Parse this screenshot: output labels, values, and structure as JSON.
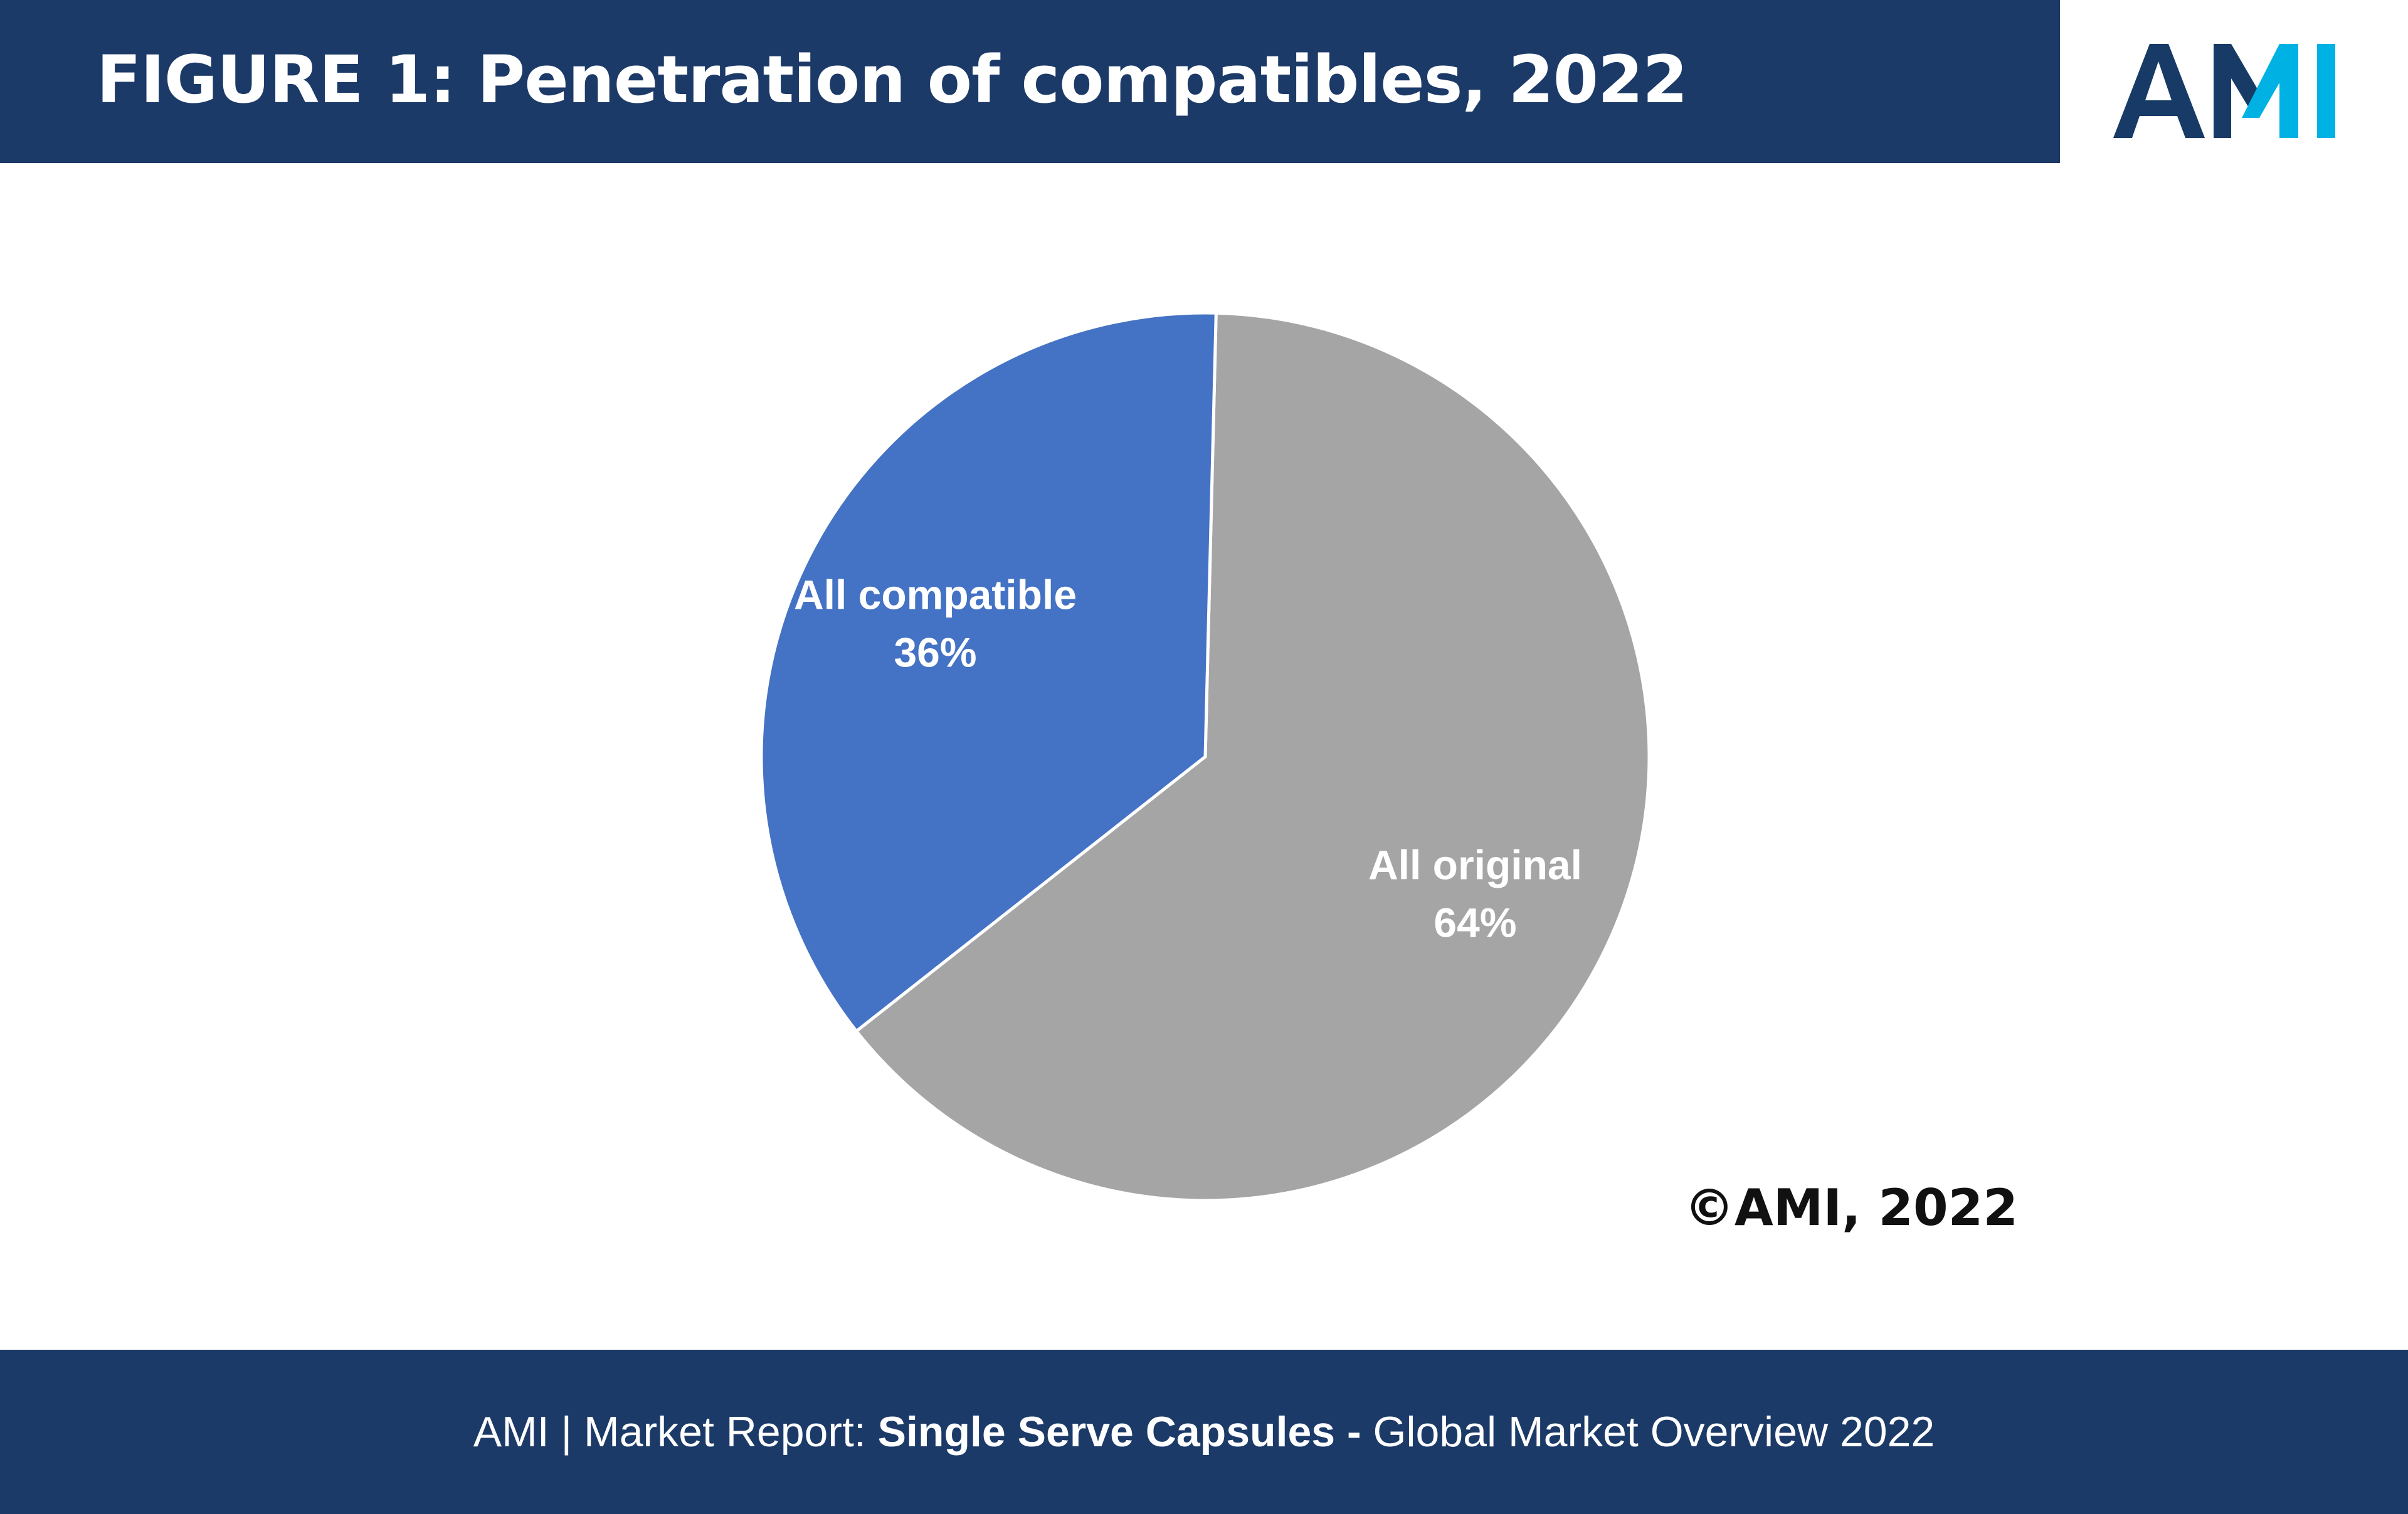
{
  "header": {
    "title": "FIGURE 1: Penetration of compatibles, 2022",
    "logo_text": "AMI"
  },
  "colors": {
    "navy": "#1c3a68",
    "logo_dark": "#173a66",
    "logo_cyan": "#00b2e3"
  },
  "chart_data": {
    "type": "pie",
    "title": "FIGURE 1: Penetration of compatibles, 2022",
    "slices": [
      {
        "label": "All original",
        "value": 64,
        "value_label": "64%",
        "color": "#a5a5a5"
      },
      {
        "label": "All compatible",
        "value": 36,
        "value_label": "36%",
        "color": "#4472c4"
      }
    ],
    "legend": "none"
  },
  "copyright": "©AMI, 2022",
  "footer": {
    "part1": "AMI  |  Market Report: ",
    "part2": "Single Serve Capsules - ",
    "part3": "Global Market Overview 2022"
  }
}
